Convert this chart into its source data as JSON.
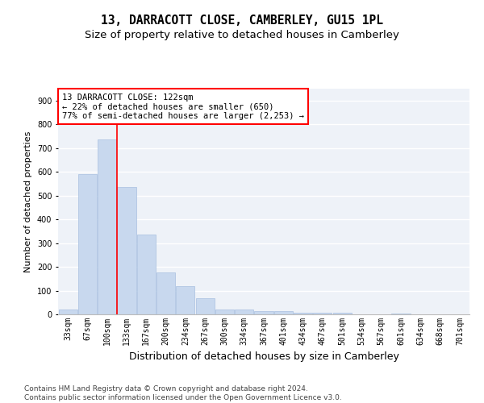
{
  "title": "13, DARRACOTT CLOSE, CAMBERLEY, GU15 1PL",
  "subtitle": "Size of property relative to detached houses in Camberley",
  "xlabel": "Distribution of detached houses by size in Camberley",
  "ylabel": "Number of detached properties",
  "categories": [
    "33sqm",
    "67sqm",
    "100sqm",
    "133sqm",
    "167sqm",
    "200sqm",
    "234sqm",
    "267sqm",
    "300sqm",
    "334sqm",
    "367sqm",
    "401sqm",
    "434sqm",
    "467sqm",
    "501sqm",
    "534sqm",
    "567sqm",
    "601sqm",
    "634sqm",
    "668sqm",
    "701sqm"
  ],
  "values": [
    20,
    590,
    735,
    535,
    335,
    178,
    118,
    68,
    22,
    20,
    12,
    12,
    8,
    8,
    6,
    0,
    0,
    5,
    0,
    0,
    0
  ],
  "bar_color": "#c8d8ee",
  "bar_edge_color": "#a8c0e0",
  "red_line_x": 2.5,
  "annotation_text": "13 DARRACOTT CLOSE: 122sqm\n← 22% of detached houses are smaller (650)\n77% of semi-detached houses are larger (2,253) →",
  "annotation_box_color": "white",
  "annotation_box_edge_color": "red",
  "ylim": [
    0,
    950
  ],
  "yticks": [
    0,
    100,
    200,
    300,
    400,
    500,
    600,
    700,
    800,
    900
  ],
  "background_color": "#eef2f8",
  "grid_color": "white",
  "footer_line1": "Contains HM Land Registry data © Crown copyright and database right 2024.",
  "footer_line2": "Contains public sector information licensed under the Open Government Licence v3.0.",
  "title_fontsize": 10.5,
  "subtitle_fontsize": 9.5,
  "xlabel_fontsize": 9,
  "ylabel_fontsize": 8,
  "tick_fontsize": 7,
  "annotation_fontsize": 7.5,
  "footer_fontsize": 6.5
}
